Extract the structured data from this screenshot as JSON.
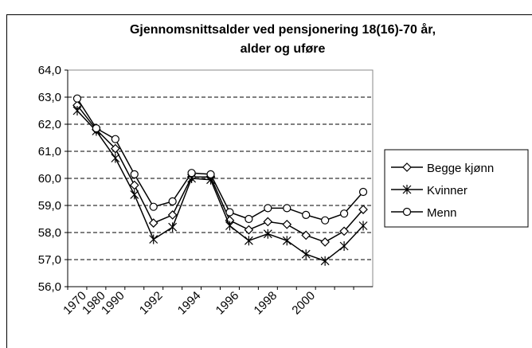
{
  "chart_data": {
    "type": "line",
    "title": [
      "Gjennomsnittsalder ved pensjonering 18(16)-70 år,",
      "alder og uføre"
    ],
    "categories": [
      "1970",
      "1980",
      "1990",
      null,
      "1992",
      null,
      "1994",
      null,
      "1996",
      null,
      "1998",
      null,
      "2000",
      null,
      null,
      null
    ],
    "series": [
      {
        "name": "Begge kjønn",
        "color": "#000000",
        "marker": "diamond",
        "values": [
          62.7,
          61.8,
          61.1,
          59.75,
          58.35,
          58.65,
          60.05,
          60.05,
          58.45,
          58.1,
          58.4,
          58.3,
          57.9,
          57.65,
          58.05,
          58.85
        ]
      },
      {
        "name": "Kvinner",
        "color": "#000000",
        "marker": "star",
        "values": [
          62.5,
          61.75,
          60.75,
          59.4,
          57.75,
          58.2,
          60.0,
          59.95,
          58.25,
          57.7,
          57.95,
          57.7,
          57.2,
          56.95,
          57.5,
          58.25
        ]
      },
      {
        "name": "Menn",
        "color": "#000000",
        "marker": "circle",
        "values": [
          62.95,
          61.85,
          61.45,
          60.15,
          58.95,
          59.15,
          60.2,
          60.15,
          58.75,
          58.5,
          58.9,
          58.9,
          58.65,
          58.45,
          58.7,
          59.5
        ]
      }
    ],
    "ylim": [
      56,
      64
    ],
    "yticks": [
      {
        "value": 56,
        "label": "56,0"
      },
      {
        "value": 57,
        "label": "57,0"
      },
      {
        "value": 58,
        "label": "58,0"
      },
      {
        "value": 59,
        "label": "59,0"
      },
      {
        "value": 60,
        "label": "60,0"
      },
      {
        "value": 61,
        "label": "61,0"
      },
      {
        "value": 62,
        "label": "62,0"
      },
      {
        "value": 63,
        "label": "63,0"
      },
      {
        "value": 64,
        "label": "64,0"
      }
    ],
    "grid": true,
    "legend": "right"
  }
}
